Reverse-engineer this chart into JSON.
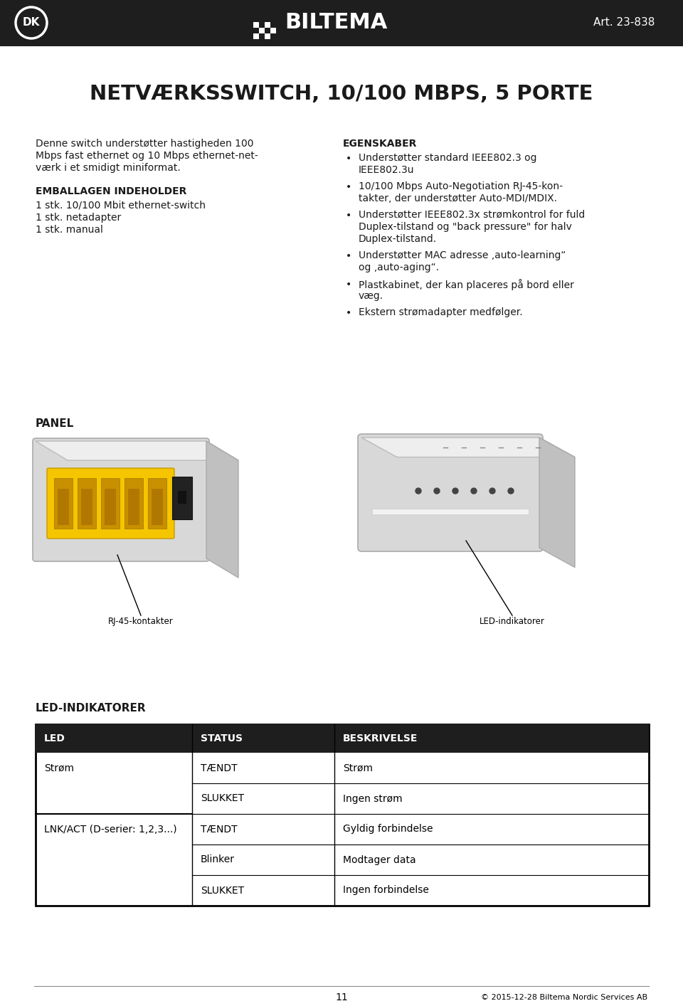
{
  "header_bg": "#1e1e1e",
  "page_bg": "#ffffff",
  "body_text_color": "#1a1a1a",
  "title": "NETVÆRKSSWITCH, 10/100 MBPS, 5 PORTE",
  "art_no": "Art. 23-838",
  "intro_lines": [
    "Denne switch understøtter hastigheden 100",
    "Mbps fast ethernet og 10 Mbps ethernet-net-",
    "værk i et smidigt miniformat."
  ],
  "emballagen_title": "EMBALLAGEN INDEHOLDER",
  "emballagen_items": [
    "1 stk. 10/100 Mbit ethernet-switch",
    "1 stk. netadapter",
    "1 stk. manual"
  ],
  "egenskaber_title": "EGENSKABER",
  "egenskaber_items": [
    [
      "Understøtter standard IEEE802.3 og",
      "IEEE802.3u"
    ],
    [
      "10/100 Mbps Auto-Negotiation RJ-45-kon-",
      "takter, der understøtter Auto-MDI/MDIX."
    ],
    [
      "Understøtter IEEE802.3x strømkontrol for fuld",
      "Duplex-tilstand og \"back pressure\" for halv",
      "Duplex-tilstand."
    ],
    [
      "Understøtter MAC adresse ‚auto-learning“",
      "og ‚auto-aging“."
    ],
    [
      "Plastkabinet, der kan placeres på bord eller",
      "væg."
    ],
    [
      "Ekstern strømadapter medfølger."
    ]
  ],
  "panel_title": "PANEL",
  "label_left": "RJ-45-kontakter",
  "label_right": "LED-indikatorer",
  "led_section_title": "LED-INDIKATORER",
  "table_header_bg": "#1e1e1e",
  "table_col_headers": [
    "LED",
    "STATUS",
    "BESKRIVELSE"
  ],
  "table_rows": [
    [
      "Strøm",
      "TÆNDT",
      "Strøm"
    ],
    [
      "",
      "SLUKKET",
      "Ingen strøm"
    ],
    [
      "LNK/ACT (D-serier: 1,2,3...)",
      "TÆNDT",
      "Gyldig forbindelse"
    ],
    [
      "",
      "Blinker",
      "Modtager data"
    ],
    [
      "",
      "SLUKKET",
      "Ingen forbindelse"
    ]
  ],
  "footer_center": "11",
  "footer_right": "© 2015-12-28 Biltema Nordic Services AB"
}
